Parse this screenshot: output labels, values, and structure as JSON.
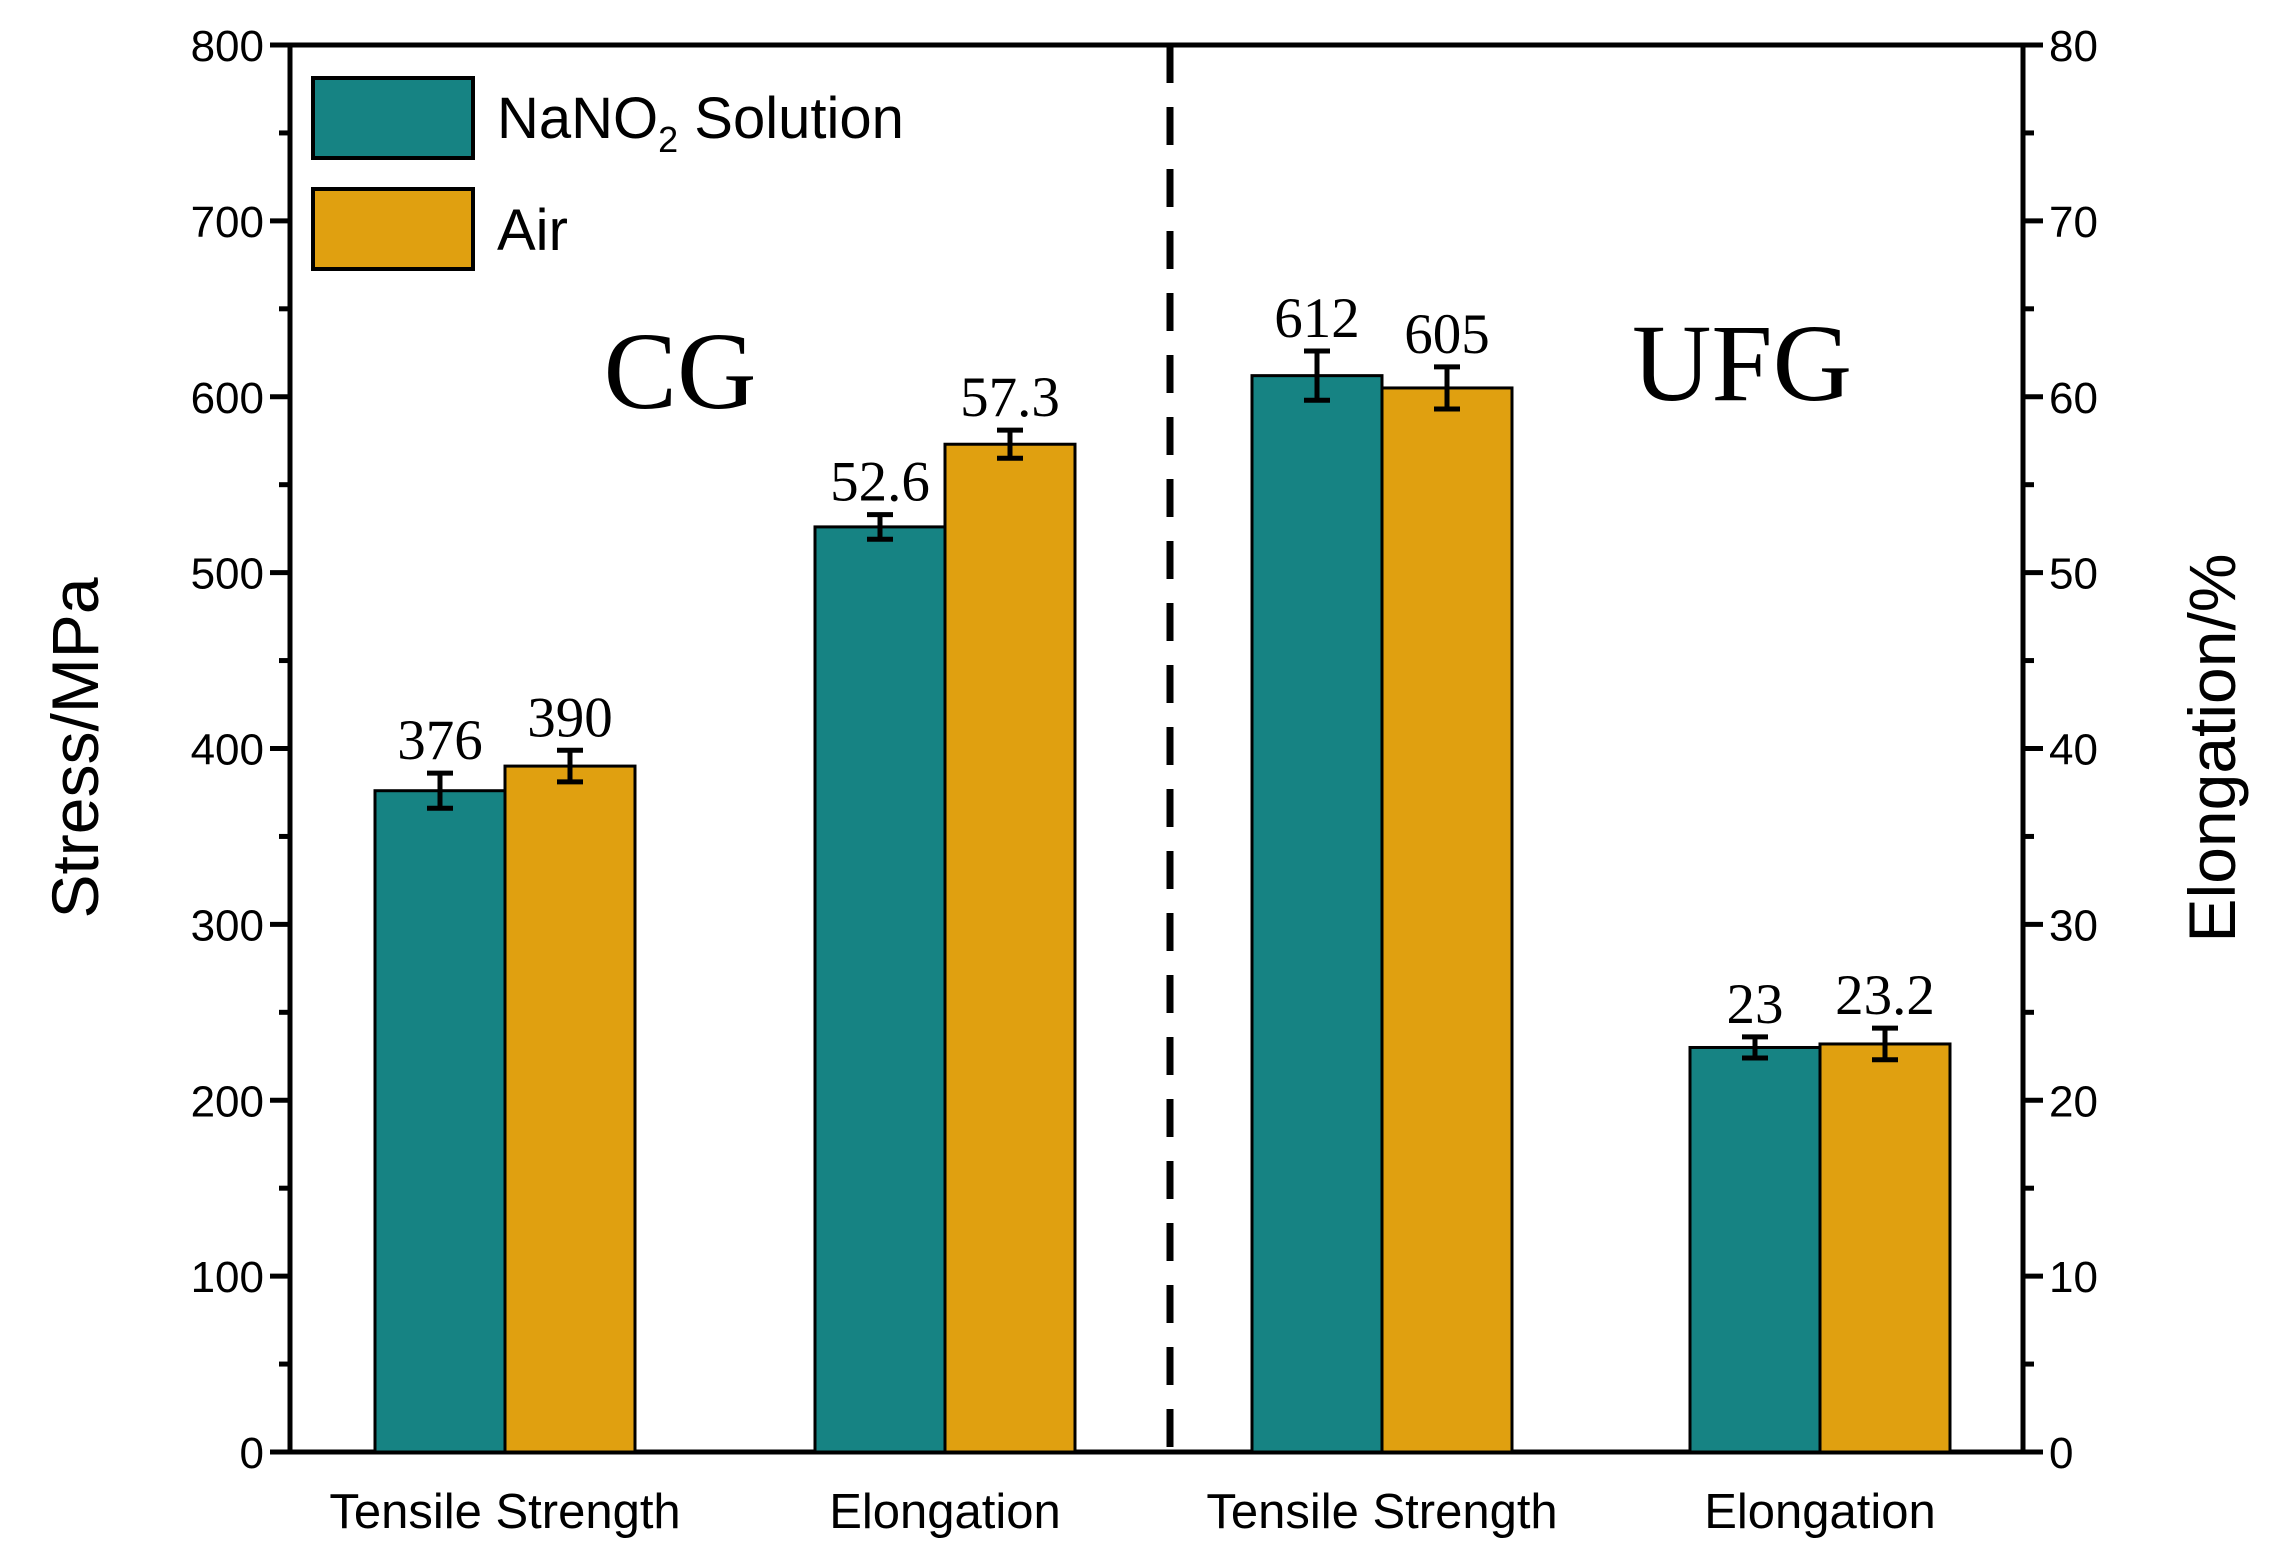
{
  "chart_data": {
    "type": "bar",
    "categories": [
      "Tensile Strength",
      "Elongation",
      "Tensile Strength",
      "Elongation"
    ],
    "groups": [
      "CG",
      "UFG"
    ],
    "series": [
      {
        "name": "NaNO2 Solution",
        "name_main": "NaNO",
        "name_sub": "2",
        "name_rest": " Solution",
        "color": "#168383",
        "values": [
          376,
          52.6,
          612,
          23
        ],
        "labels": [
          "376",
          "52.6",
          "612",
          "23"
        ],
        "errors": [
          10,
          0.7,
          14,
          0.6
        ]
      },
      {
        "name": "Air",
        "color": "#E0A010",
        "values": [
          390,
          57.3,
          605,
          23.2
        ],
        "labels": [
          "390",
          "57.3",
          "605",
          "23.2"
        ],
        "errors": [
          9,
          0.8,
          12,
          0.9
        ]
      }
    ],
    "value_axis": [
      "left",
      "right",
      "left",
      "right"
    ],
    "ylabel_left": "Stress/MPa",
    "ylabel_right": "Elongation/%",
    "ylim_left": [
      0,
      800
    ],
    "ylim_right": [
      0,
      80
    ],
    "yticks_left": [
      "0",
      "100",
      "200",
      "300",
      "400",
      "500",
      "600",
      "700",
      "800"
    ],
    "yticks_right": [
      "0",
      "10",
      "20",
      "30",
      "40",
      "50",
      "60",
      "70",
      "80"
    ],
    "grid": false,
    "legend_position": "top-left"
  }
}
